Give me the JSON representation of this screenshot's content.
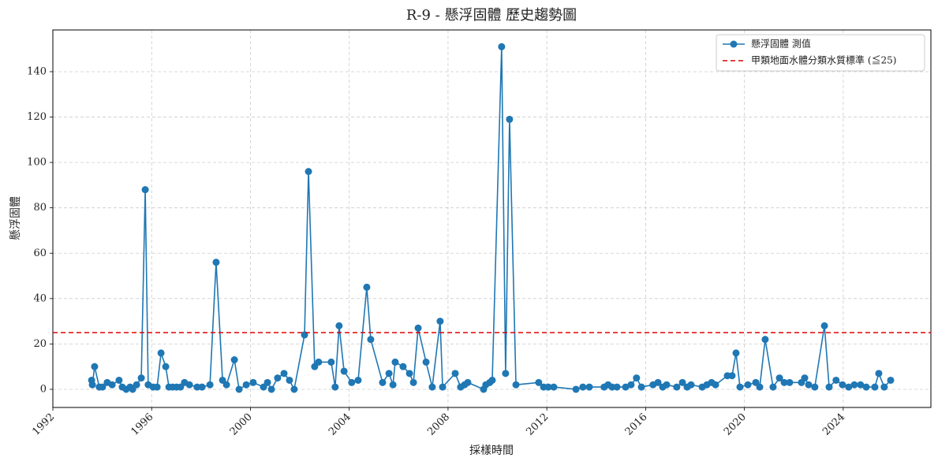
{
  "chart_data": {
    "type": "line",
    "title": "R-9 - 懸浮固體 歷史趨勢圖",
    "x_label": "採樣時間",
    "y_label": "懸浮固體",
    "x": [
      1993.57,
      1993.6,
      1993.69,
      1993.88,
      1994.01,
      1994.2,
      1994.4,
      1994.68,
      1994.81,
      1994.97,
      1995.13,
      1995.23,
      1995.39,
      1995.58,
      1995.74,
      1995.86,
      1996.06,
      1996.22,
      1996.38,
      1996.57,
      1996.7,
      1996.85,
      1997.01,
      1997.17,
      1997.33,
      1997.53,
      1997.84,
      1998.04,
      1998.36,
      1998.61,
      1998.87,
      1999.03,
      1999.35,
      1999.54,
      1999.83,
      2000.11,
      2000.53,
      2000.69,
      2000.85,
      2001.1,
      2001.36,
      2001.58,
      2001.77,
      2002.19,
      2002.35,
      2002.6,
      2002.76,
      2003.27,
      2003.43,
      2003.59,
      2003.79,
      2004.1,
      2004.36,
      2004.71,
      2004.87,
      2005.35,
      2005.61,
      2005.77,
      2005.86,
      2006.18,
      2006.44,
      2006.6,
      2006.79,
      2007.11,
      2007.36,
      2007.68,
      2007.78,
      2008.29,
      2008.51,
      2008.67,
      2008.8,
      2009.44,
      2009.53,
      2009.69,
      2009.79,
      2010.17,
      2010.33,
      2010.49,
      2010.75,
      2011.67,
      2011.87,
      2012.06,
      2012.28,
      2013.18,
      2013.46,
      2013.72,
      2014.32,
      2014.48,
      2014.64,
      2014.84,
      2015.19,
      2015.41,
      2015.63,
      2015.83,
      2016.3,
      2016.5,
      2016.69,
      2016.85,
      2017.26,
      2017.49,
      2017.68,
      2017.84,
      2018.29,
      2018.48,
      2018.67,
      2018.83,
      2019.31,
      2019.5,
      2019.66,
      2019.82,
      2020.14,
      2020.46,
      2020.62,
      2020.84,
      2021.16,
      2021.42,
      2021.61,
      2021.83,
      2022.31,
      2022.44,
      2022.6,
      2022.85,
      2023.24,
      2023.43,
      2023.71,
      2023.97,
      2024.22,
      2024.45,
      2024.7,
      2024.93,
      2025.28,
      2025.44,
      2025.66,
      2025.92
    ],
    "series": [
      {
        "name": "懸浮固體 測值",
        "color": "#1f77b4",
        "values": [
          4,
          2,
          10,
          1,
          1,
          3,
          2,
          4,
          1,
          0,
          1,
          0,
          2,
          5,
          88,
          2,
          1,
          1,
          16,
          10,
          1,
          1,
          1,
          1,
          3,
          2,
          1,
          1,
          2,
          56,
          4,
          2,
          13,
          0,
          2,
          3,
          1,
          3,
          0,
          5,
          7,
          4,
          0,
          24,
          96,
          10,
          12,
          12,
          1,
          28,
          8,
          3,
          4,
          45,
          22,
          3,
          7,
          2,
          12,
          10,
          7,
          3,
          27,
          12,
          1,
          30,
          1,
          7,
          1,
          2,
          3,
          0,
          2,
          3,
          4,
          151,
          7,
          119,
          2,
          3,
          1,
          1,
          1,
          0,
          1,
          1,
          1,
          2,
          1,
          1,
          1,
          2,
          5,
          1,
          2,
          3,
          1,
          2,
          1,
          3,
          1,
          2,
          1,
          2,
          3,
          2,
          6,
          6,
          16,
          1,
          2,
          3,
          1,
          22,
          1,
          5,
          3,
          3,
          3,
          5,
          2,
          1,
          28,
          1,
          4,
          2,
          1,
          2,
          2,
          1,
          1,
          7,
          1,
          4
        ]
      }
    ],
    "hline": {
      "value": 25,
      "label": "甲類地面水體分類水質標準 (≦25)",
      "color": "#e00000"
    },
    "xlim": [
      1992,
      2027.55
    ],
    "ylim": [
      -8,
      158.4
    ],
    "xticks": [
      1992,
      1996,
      2000,
      2004,
      2008,
      2012,
      2016,
      2020,
      2024
    ],
    "yticks": [
      0,
      20,
      40,
      60,
      80,
      100,
      120,
      140
    ],
    "grid": true,
    "legend": "upper right"
  }
}
